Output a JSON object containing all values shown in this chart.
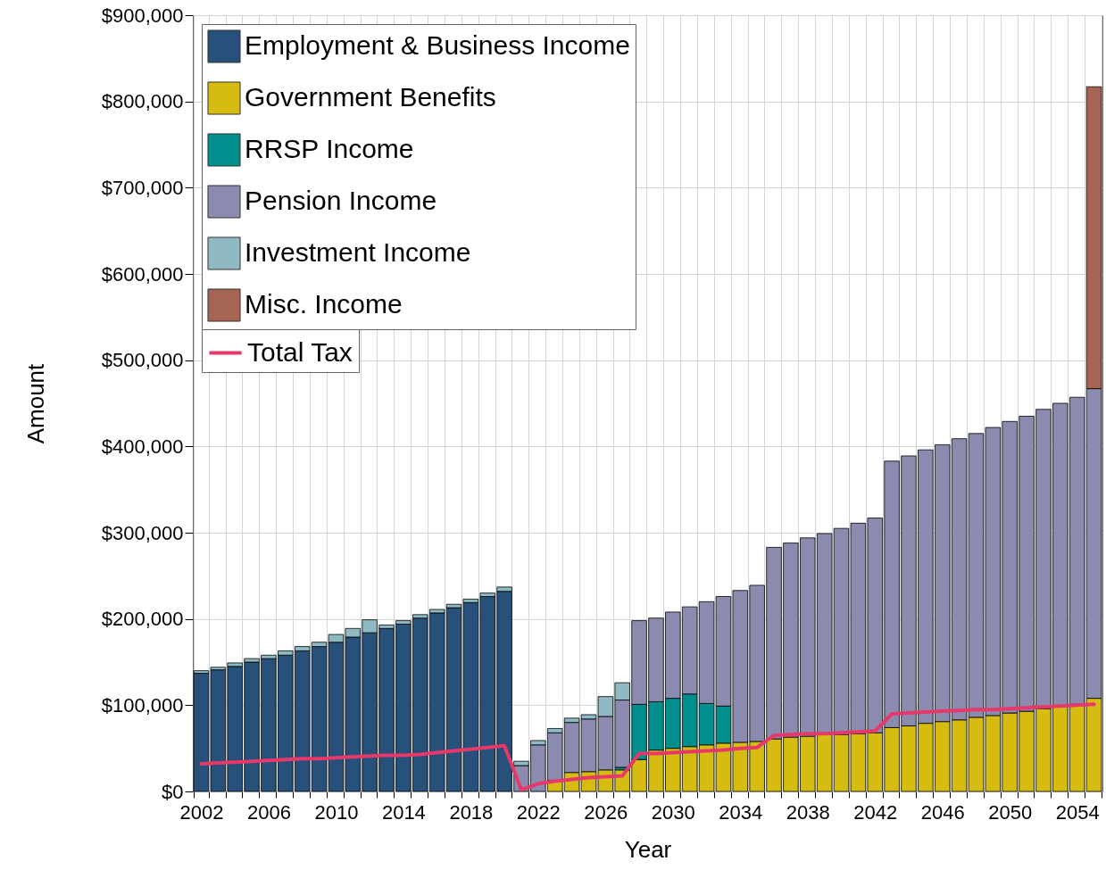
{
  "chart_data": {
    "type": "bar",
    "stacked": true,
    "xlabel": "Year",
    "ylabel": "Amount",
    "grid": true,
    "legend": "top left",
    "categories": [
      "2002",
      null,
      null,
      null,
      "2006",
      null,
      null,
      null,
      "2010",
      null,
      null,
      null,
      "2014",
      null,
      null,
      null,
      "2018",
      null,
      null,
      null,
      "2022",
      null,
      null,
      null,
      "2026",
      null,
      null,
      null,
      "2030",
      null,
      null,
      null,
      "2034",
      null,
      null,
      null,
      "2038",
      null,
      null,
      null,
      "2042",
      null,
      null,
      null,
      "2046",
      null,
      null,
      null,
      "2050",
      null,
      null,
      null,
      "2054",
      null
    ],
    "ylim": [
      0,
      900000
    ],
    "yticks": [
      {
        "value": 0,
        "label": "$0"
      },
      {
        "value": 100000,
        "label": "$100,000"
      },
      {
        "value": 200000,
        "label": "$200,000"
      },
      {
        "value": 300000,
        "label": "$300,000"
      },
      {
        "value": 400000,
        "label": "$400,000"
      },
      {
        "value": 500000,
        "label": "$500,000"
      },
      {
        "value": 600000,
        "label": "$600,000"
      },
      {
        "value": 700000,
        "label": "$700,000"
      },
      {
        "value": 800000,
        "label": "$800,000"
      },
      {
        "value": 900000,
        "label": "$900,000"
      }
    ],
    "series": [
      {
        "name": "Employment & Business Income",
        "color": "#27507a",
        "values": [
          137000,
          141000,
          145000,
          150000,
          154000,
          158000,
          163000,
          168000,
          173000,
          179000,
          184000,
          189000,
          194000,
          201000,
          207000,
          213000,
          219000,
          226000,
          232000,
          null,
          null,
          null,
          null,
          null,
          null,
          null,
          null,
          null,
          null,
          null,
          null,
          null,
          null,
          null,
          null,
          null,
          null,
          null,
          null,
          null,
          null,
          null,
          null,
          null,
          null,
          null,
          null,
          null,
          null,
          null,
          null,
          null,
          null,
          null
        ]
      },
      {
        "name": "Government Benefits",
        "color": "#d6bb10",
        "values": [
          null,
          null,
          null,
          null,
          null,
          null,
          null,
          null,
          null,
          null,
          null,
          null,
          null,
          null,
          null,
          null,
          null,
          null,
          null,
          null,
          null,
          13000,
          22000,
          23000,
          25000,
          25000,
          37000,
          48000,
          50000,
          52000,
          54000,
          56000,
          57000,
          58000,
          61000,
          63000,
          64000,
          66000,
          66000,
          67000,
          68000,
          74000,
          76000,
          79000,
          81000,
          83000,
          86000,
          88000,
          91000,
          93000,
          96000,
          99000,
          101000,
          108000
        ]
      },
      {
        "name": "RRSP Income",
        "color": "#008f8c",
        "values": [
          null,
          null,
          null,
          null,
          null,
          null,
          null,
          null,
          null,
          null,
          null,
          null,
          null,
          null,
          null,
          null,
          null,
          null,
          null,
          null,
          null,
          null,
          null,
          null,
          null,
          3000,
          64000,
          56000,
          58000,
          61000,
          48000,
          43000,
          null,
          null,
          null,
          null,
          null,
          null,
          null,
          null,
          null,
          null,
          null,
          null,
          null,
          null,
          null,
          null,
          null,
          null,
          null,
          null,
          null,
          null
        ]
      },
      {
        "name": "Pension Income",
        "color": "#8b8bb0",
        "values": [
          null,
          null,
          null,
          null,
          null,
          null,
          null,
          null,
          null,
          null,
          null,
          null,
          null,
          null,
          null,
          null,
          null,
          null,
          null,
          30000,
          54000,
          55000,
          58000,
          61000,
          62000,
          78000,
          97000,
          97000,
          100000,
          101000,
          118000,
          127000,
          176000,
          181000,
          222000,
          225000,
          230000,
          233000,
          239000,
          244000,
          249000,
          309000,
          313000,
          317000,
          321000,
          326000,
          329000,
          334000,
          338000,
          342000,
          347000,
          351000,
          356000,
          359000
        ]
      },
      {
        "name": "Investment Income",
        "color": "#8fbac4",
        "values": [
          3000,
          3000,
          4000,
          4000,
          4000,
          5000,
          5000,
          5000,
          9000,
          10000,
          15000,
          4000,
          4000,
          4000,
          4000,
          4000,
          4000,
          4000,
          5000,
          5000,
          5000,
          5000,
          5000,
          5000,
          23000,
          20000,
          null,
          null,
          null,
          null,
          null,
          null,
          null,
          null,
          null,
          null,
          null,
          null,
          null,
          null,
          null,
          null,
          null,
          null,
          null,
          null,
          null,
          null,
          null,
          null,
          null,
          null,
          null,
          null
        ]
      },
      {
        "name": "Misc. Income",
        "color": "#a66552",
        "values": [
          null,
          null,
          null,
          null,
          null,
          null,
          null,
          null,
          null,
          null,
          null,
          null,
          null,
          null,
          null,
          null,
          null,
          null,
          null,
          null,
          null,
          null,
          null,
          null,
          null,
          null,
          null,
          null,
          null,
          null,
          null,
          null,
          null,
          null,
          null,
          null,
          null,
          null,
          null,
          null,
          null,
          null,
          null,
          null,
          null,
          null,
          null,
          null,
          null,
          null,
          null,
          null,
          null,
          350000
        ]
      },
      {
        "name": "Total Tax",
        "type": "line",
        "color": "#e8386a",
        "values": [
          32000,
          33000,
          34000,
          35000,
          36000,
          37000,
          38000,
          38000,
          39000,
          40000,
          41000,
          42000,
          42000,
          43000,
          45000,
          47000,
          49000,
          51000,
          53000,
          2000,
          9000,
          12000,
          14000,
          16000,
          17000,
          18000,
          44000,
          44000,
          45000,
          46000,
          47000,
          48000,
          50000,
          51000,
          65000,
          66000,
          67000,
          67000,
          68000,
          69000,
          70000,
          90000,
          91000,
          92000,
          93000,
          94000,
          95000,
          95000,
          96000,
          97000,
          98000,
          99000,
          100000,
          101000
        ]
      }
    ]
  }
}
